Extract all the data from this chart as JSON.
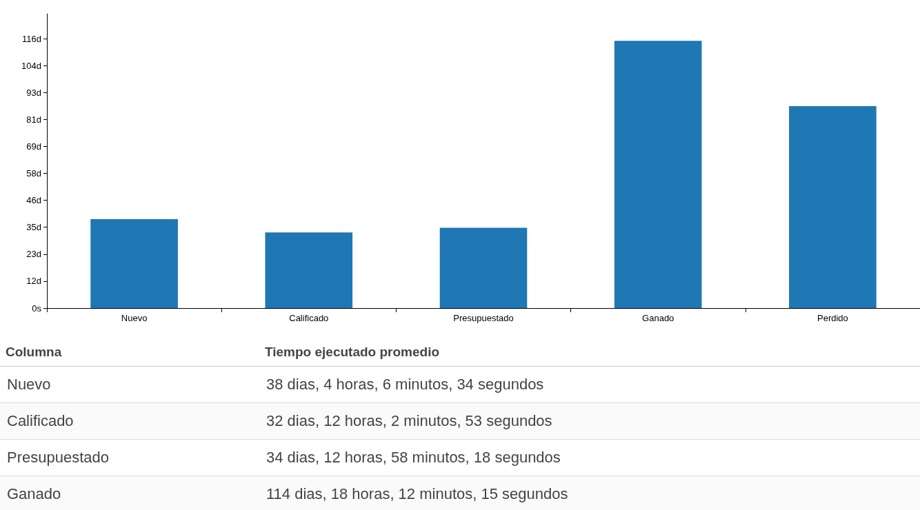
{
  "chart_data": {
    "type": "bar",
    "categories": [
      "Nuevo",
      "Calificado",
      "Presupuestado",
      "Ganado",
      "Perdido"
    ],
    "values": [
      38.2,
      32.5,
      34.5,
      114.8,
      86.7
    ],
    "color": "#1f77b4",
    "ylim": [
      0,
      126.4
    ],
    "yticks": [
      {
        "value": 0,
        "label": "0s"
      },
      {
        "value": 11.574,
        "label": "12d"
      },
      {
        "value": 23.148,
        "label": "23d"
      },
      {
        "value": 34.722,
        "label": "35d"
      },
      {
        "value": 46.296,
        "label": "46d"
      },
      {
        "value": 57.87,
        "label": "58d"
      },
      {
        "value": 69.444,
        "label": "69d"
      },
      {
        "value": 81.019,
        "label": "81d"
      },
      {
        "value": 92.593,
        "label": "93d"
      },
      {
        "value": 104.167,
        "label": "104d"
      },
      {
        "value": 115.741,
        "label": "116d"
      }
    ],
    "annotations": [
      "Columna",
      "Tiempo ejecutado promedio",
      "Nuevo",
      "38 dias, 4 horas, 6 minutos, 34 segundos",
      "Calificado",
      "32 dias, 12 horas, 2 minutos, 53 segundos",
      "Presupuestado",
      "34 dias, 12 horas, 58 minutos, 18 segundos",
      "Ganado",
      "114 dias, 18 horas, 12 minutos, 15 segundos"
    ],
    "grid": false
  }
}
